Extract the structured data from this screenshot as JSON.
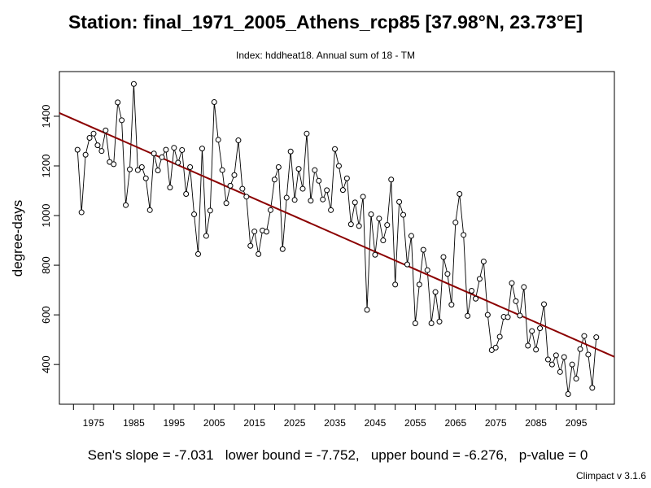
{
  "title": "Station: final_1971_2005_Athens_rcp85 [37.98°N, 23.73°E]",
  "subtitle": "Index: hddheat18. Annual sum of 18 - TM",
  "stats_text": "Sen's slope = -7.031   lower bound = -7.752,   upper bound = -6.276,   p-value = 0",
  "version_text": "Climpact v 3.1.6",
  "colors": {
    "trend": "#8b0000",
    "series": "#000000",
    "point_fill": "#ffffff"
  },
  "chart_data": {
    "type": "line",
    "ylabel": "degree-days",
    "xlabel": "",
    "xlim": [
      1966.5,
      2104.5
    ],
    "ylim": [
      240,
      1580
    ],
    "grid": false,
    "x_ticks": [
      1975,
      1985,
      1995,
      2005,
      2015,
      2025,
      2035,
      2045,
      2055,
      2065,
      2075,
      2085,
      2095
    ],
    "y_ticks": [
      400,
      600,
      800,
      1000,
      1200,
      1400
    ],
    "x": [
      1971,
      1972,
      1973,
      1974,
      1975,
      1976,
      1977,
      1978,
      1979,
      1980,
      1981,
      1982,
      1983,
      1984,
      1985,
      1986,
      1987,
      1988,
      1989,
      1990,
      1991,
      1992,
      1993,
      1994,
      1995,
      1996,
      1997,
      1998,
      1999,
      2000,
      2001,
      2002,
      2003,
      2004,
      2005,
      2006,
      2007,
      2008,
      2009,
      2010,
      2011,
      2012,
      2013,
      2014,
      2015,
      2016,
      2017,
      2018,
      2019,
      2020,
      2021,
      2022,
      2023,
      2024,
      2025,
      2026,
      2027,
      2028,
      2029,
      2030,
      2031,
      2032,
      2033,
      2034,
      2035,
      2036,
      2037,
      2038,
      2039,
      2040,
      2041,
      2042,
      2043,
      2044,
      2045,
      2046,
      2047,
      2048,
      2049,
      2050,
      2051,
      2052,
      2053,
      2054,
      2055,
      2056,
      2057,
      2058,
      2059,
      2060,
      2061,
      2062,
      2063,
      2064,
      2065,
      2066,
      2067,
      2068,
      2069,
      2070,
      2071,
      2072,
      2073,
      2074,
      2075,
      2076,
      2077,
      2078,
      2079,
      2080,
      2081,
      2082,
      2083,
      2084,
      2085,
      2086,
      2087,
      2088,
      2089,
      2090,
      2091,
      2092,
      2093,
      2094,
      2095,
      2096,
      2097,
      2098,
      2099,
      2100
    ],
    "y": [
      1265,
      1013,
      1245,
      1313,
      1330,
      1283,
      1260,
      1343,
      1216,
      1207,
      1456,
      1384,
      1042,
      1186,
      1530,
      1183,
      1195,
      1150,
      1022,
      1250,
      1182,
      1235,
      1265,
      1113,
      1273,
      1213,
      1264,
      1087,
      1195,
      1005,
      845,
      1270,
      918,
      1020,
      1457,
      1305,
      1183,
      1050,
      1120,
      1163,
      1303,
      1108,
      1076,
      878,
      936,
      845,
      940,
      935,
      1022,
      1145,
      1195,
      865,
      1072,
      1258,
      1063,
      1188,
      1108,
      1330,
      1060,
      1183,
      1140,
      1065,
      1102,
      1022,
      1268,
      1200,
      1103,
      1150,
      965,
      1053,
      958,
      1076,
      620,
      1005,
      842,
      988,
      900,
      962,
      1145,
      722,
      1055,
      1003,
      803,
      918,
      566,
      722,
      862,
      780,
      566,
      692,
      573,
      833,
      765,
      641,
      972,
      1087,
      922,
      596,
      697,
      665,
      745,
      815,
      600,
      458,
      468,
      512,
      592,
      591,
      728,
      655,
      597,
      712,
      476,
      535,
      460,
      546,
      643,
      420,
      400,
      437,
      370,
      430,
      281,
      400,
      343,
      462,
      515,
      440,
      306,
      510
    ],
    "trend": {
      "label": "Sen's slope",
      "slope": -7.031,
      "start": [
        1966.5,
        1413
      ],
      "end": [
        2104.5,
        431
      ]
    }
  }
}
